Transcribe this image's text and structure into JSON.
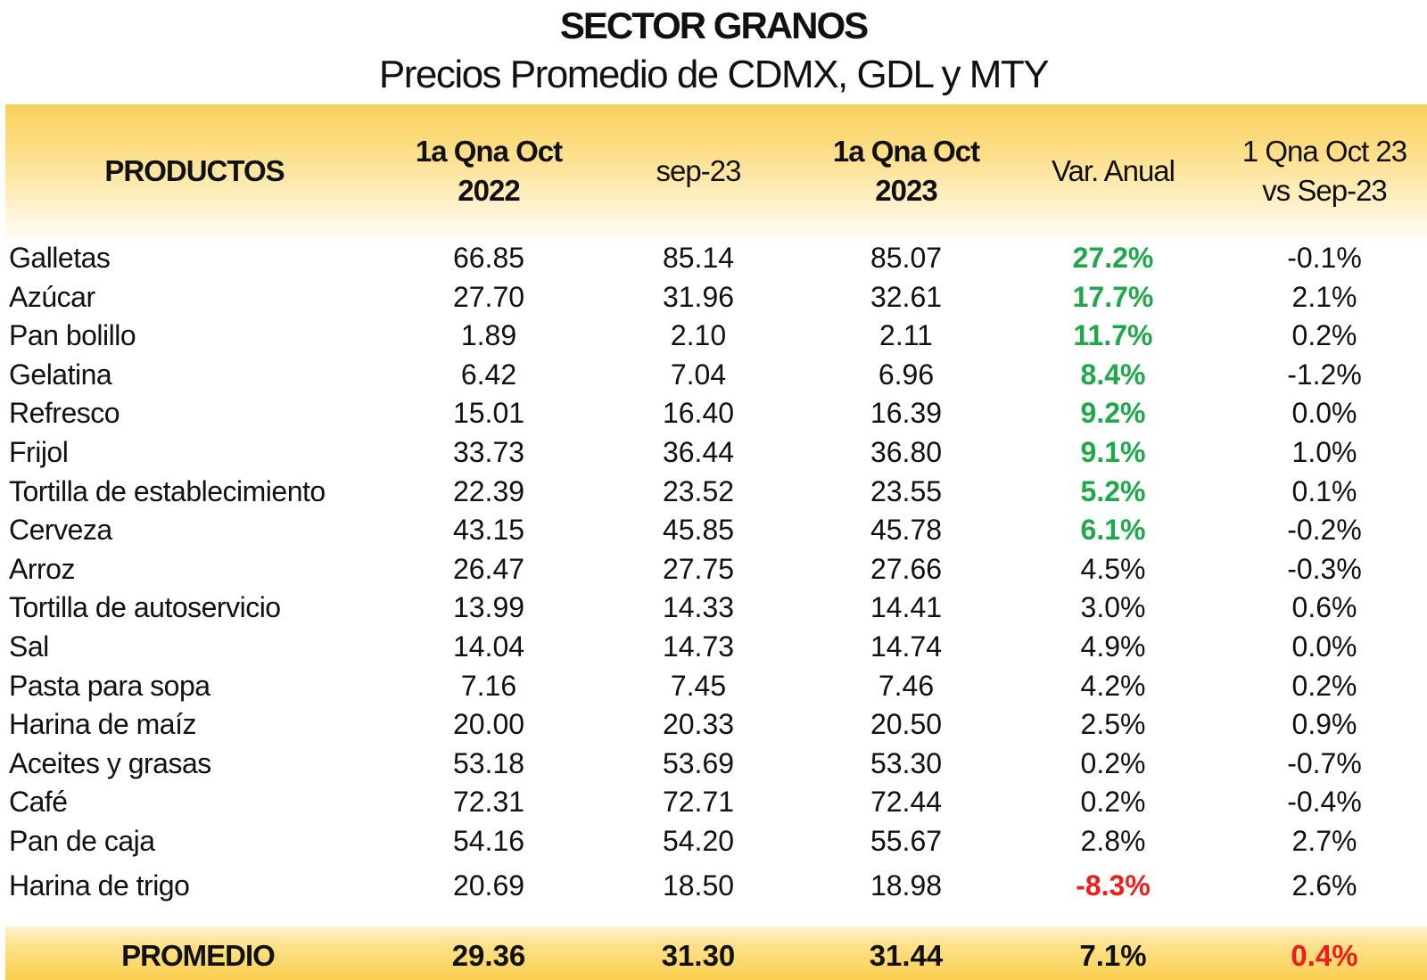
{
  "title": "SECTOR GRANOS",
  "subtitle": "Precios Promedio de CDMX, GDL y MTY",
  "headers": {
    "productos": "PRODUCTOS",
    "col1_line1": "1a Qna Oct",
    "col1_line2": "2022",
    "col2": "sep-23",
    "col3_line1": "1a Qna Oct",
    "col3_line2": "2023",
    "col4": "Var. Anual",
    "col5_line1": "1 Qna Oct 23",
    "col5_line2": "vs Sep-23"
  },
  "colors": {
    "positive_highlight": "#1fa84a",
    "negative_highlight": "#ee1c1c",
    "band_gold": "#fbcf4f"
  },
  "rows": [
    {
      "name": "Galletas",
      "c1": "66.85",
      "c2": "85.14",
      "c3": "85.07",
      "var": "27.2%",
      "var_style": "green",
      "mom": "-0.1%"
    },
    {
      "name": "Azúcar",
      "c1": "27.70",
      "c2": "31.96",
      "c3": "32.61",
      "var": "17.7%",
      "var_style": "green",
      "mom": "2.1%"
    },
    {
      "name": "Pan bolillo",
      "c1": "1.89",
      "c2": "2.10",
      "c3": "2.11",
      "var": "11.7%",
      "var_style": "green",
      "mom": "0.2%"
    },
    {
      "name": "Gelatina",
      "c1": "6.42",
      "c2": "7.04",
      "c3": "6.96",
      "var": "8.4%",
      "var_style": "green",
      "mom": "-1.2%"
    },
    {
      "name": "Refresco",
      "c1": "15.01",
      "c2": "16.40",
      "c3": "16.39",
      "var": "9.2%",
      "var_style": "green",
      "mom": "0.0%"
    },
    {
      "name": "Frijol",
      "c1": "33.73",
      "c2": "36.44",
      "c3": "36.80",
      "var": "9.1%",
      "var_style": "green",
      "mom": "1.0%"
    },
    {
      "name": "Tortilla de establecimiento",
      "c1": "22.39",
      "c2": "23.52",
      "c3": "23.55",
      "var": "5.2%",
      "var_style": "green",
      "mom": "0.1%"
    },
    {
      "name": "Cerveza",
      "c1": "43.15",
      "c2": "45.85",
      "c3": "45.78",
      "var": "6.1%",
      "var_style": "green",
      "mom": "-0.2%"
    },
    {
      "name": "Arroz",
      "c1": "26.47",
      "c2": "27.75",
      "c3": "27.66",
      "var": "4.5%",
      "var_style": "normal",
      "mom": "-0.3%"
    },
    {
      "name": "Tortilla de autoservicio",
      "c1": "13.99",
      "c2": "14.33",
      "c3": "14.41",
      "var": "3.0%",
      "var_style": "normal",
      "mom": "0.6%"
    },
    {
      "name": "Sal",
      "c1": "14.04",
      "c2": "14.73",
      "c3": "14.74",
      "var": "4.9%",
      "var_style": "normal",
      "mom": "0.0%"
    },
    {
      "name": "Pasta para sopa",
      "c1": "7.16",
      "c2": "7.45",
      "c3": "7.46",
      "var": "4.2%",
      "var_style": "normal",
      "mom": "0.2%"
    },
    {
      "name": "Harina de maíz",
      "c1": "20.00",
      "c2": "20.33",
      "c3": "20.50",
      "var": "2.5%",
      "var_style": "normal",
      "mom": "0.9%"
    },
    {
      "name": "Aceites y grasas",
      "c1": "53.18",
      "c2": "53.69",
      "c3": "53.30",
      "var": "0.2%",
      "var_style": "normal",
      "mom": "-0.7%"
    },
    {
      "name": "Café",
      "c1": "72.31",
      "c2": "72.71",
      "c3": "72.44",
      "var": "0.2%",
      "var_style": "normal",
      "mom": "-0.4%"
    },
    {
      "name": "Pan de caja",
      "c1": "54.16",
      "c2": "54.20",
      "c3": "55.67",
      "var": "2.8%",
      "var_style": "normal",
      "mom": "2.7%"
    },
    {
      "name": "Harina de trigo",
      "c1": "20.69",
      "c2": "18.50",
      "c3": "18.98",
      "var": "-8.3%",
      "var_style": "red",
      "mom": "2.6%"
    }
  ],
  "footer": {
    "name": "PROMEDIO",
    "c1": "29.36",
    "c2": "31.30",
    "c3": "31.44",
    "var": "7.1%",
    "mom": "0.4%",
    "mom_style": "red"
  }
}
